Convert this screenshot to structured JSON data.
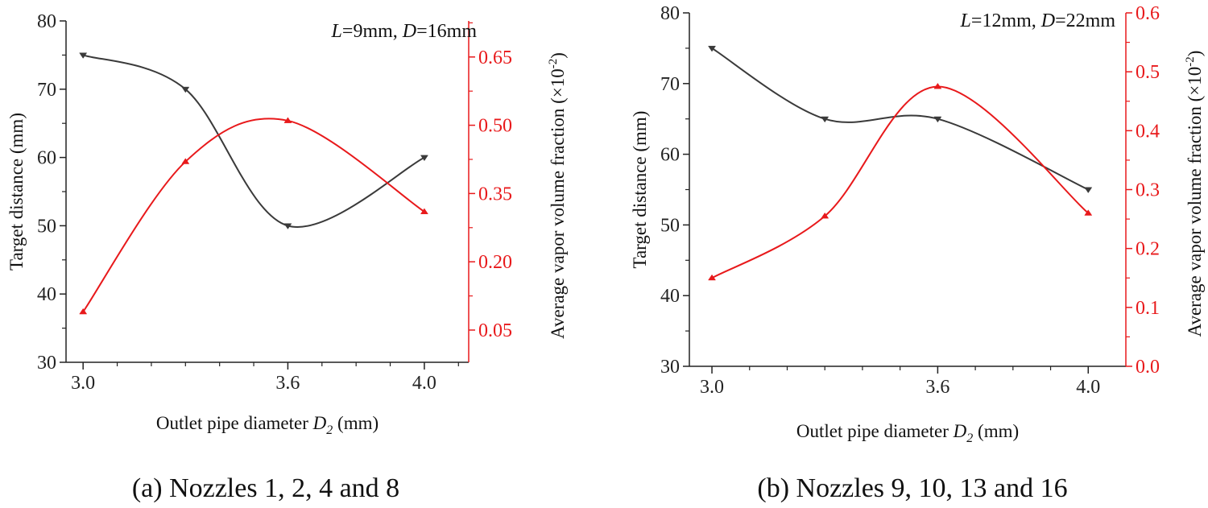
{
  "colors": {
    "series_black": "#3a3a3a",
    "series_red": "#e8191b",
    "axis": "#222222"
  },
  "chart_data": [
    {
      "type": "line",
      "id": "a",
      "caption": "(a) Nozzles 1, 2, 4 and 8",
      "annotation": {
        "L": "L",
        "L_value": "=9mm, ",
        "D": "D",
        "D_value": "=16mm"
      },
      "xlabel": {
        "text": "Outlet pipe  diameter ",
        "var": "D",
        "sub": "2",
        "unit": " (mm)"
      },
      "ylabel_left": "Target distance (mm)",
      "ylabel_right": {
        "text": "Average vapor volume fraction (×10",
        "sup": "-2",
        "close": ")"
      },
      "xlim": [
        2.95,
        4.13
      ],
      "x_ticks": [
        3.0,
        3.6,
        4.0
      ],
      "x_tick_labels": [
        "3.0",
        "3.6",
        "4.0"
      ],
      "x_minor_ticks": [
        3.1,
        3.2,
        3.3,
        3.4,
        3.5,
        3.7,
        3.8,
        3.9,
        4.1
      ],
      "ylim_left": [
        30,
        80
      ],
      "y_left_ticks": [
        30,
        40,
        50,
        60,
        70,
        80
      ],
      "y_left_tick_labels": [
        "30",
        "40",
        "50",
        "60",
        "70",
        "80"
      ],
      "ylim_right": [
        -0.0208,
        0.7292
      ],
      "y_right_ticks": [
        0.05,
        0.2,
        0.35,
        0.5,
        0.65
      ],
      "y_right_tick_labels": [
        "0.05",
        "0.20",
        "0.35",
        "0.50",
        "0.65"
      ],
      "x": [
        3.0,
        3.3,
        3.6,
        4.0
      ],
      "series": [
        {
          "name": "Target distance",
          "axis": "left",
          "color": "#3a3a3a",
          "marker": "down-triangle",
          "values": [
            75,
            70,
            50,
            60
          ]
        },
        {
          "name": "Average vapor volume fraction",
          "axis": "right",
          "color": "#e8191b",
          "marker": "up-triangle",
          "values": [
            0.09,
            0.42,
            0.51,
            0.31
          ]
        }
      ]
    },
    {
      "type": "line",
      "id": "b",
      "caption": "(b) Nozzles 9, 10, 13 and 16",
      "annotation": {
        "L": "L",
        "L_value": "=12mm, ",
        "D": "D",
        "D_value": "=22mm"
      },
      "xlabel": {
        "text": "Outlet pipe  diameter ",
        "var": "D",
        "sub": "2",
        "unit": " (mm)"
      },
      "ylabel_left": "Target distance (mm)",
      "ylabel_right": {
        "text": "Average vapor volume fraction (×10",
        "sup": "-2",
        "close": ")"
      },
      "xlim": [
        2.94,
        4.1
      ],
      "x_ticks": [
        3.0,
        3.6,
        4.0
      ],
      "x_tick_labels": [
        "3.0",
        "3.6",
        "4.0"
      ],
      "x_minor_ticks": [
        3.1,
        3.2,
        3.3,
        3.4,
        3.5,
        3.7,
        3.8,
        3.9
      ],
      "ylim_left": [
        30,
        80
      ],
      "y_left_ticks": [
        30,
        40,
        50,
        60,
        70,
        80
      ],
      "y_left_tick_labels": [
        "30",
        "40",
        "50",
        "60",
        "70",
        "80"
      ],
      "ylim_right": [
        0,
        0.6
      ],
      "y_right_ticks": [
        0.0,
        0.1,
        0.2,
        0.3,
        0.4,
        0.5,
        0.6
      ],
      "y_right_tick_labels": [
        "0.0",
        "0.1",
        "0.2",
        "0.3",
        "0.4",
        "0.5",
        "0.6"
      ],
      "x": [
        3.0,
        3.3,
        3.6,
        4.0
      ],
      "series": [
        {
          "name": "Target distance",
          "axis": "left",
          "color": "#3a3a3a",
          "marker": "down-triangle",
          "values": [
            75,
            65,
            65,
            55
          ]
        },
        {
          "name": "Average vapor volume fraction",
          "axis": "right",
          "color": "#e8191b",
          "marker": "up-triangle",
          "values": [
            0.15,
            0.255,
            0.475,
            0.26
          ]
        }
      ]
    }
  ]
}
